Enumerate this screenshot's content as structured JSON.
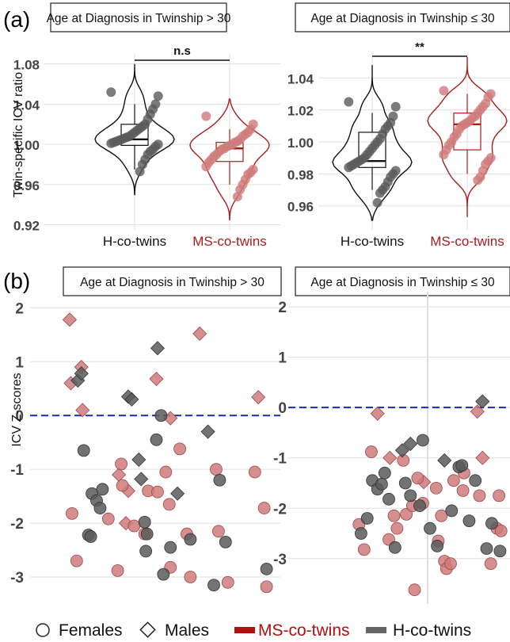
{
  "figure": {
    "panel_a_label": "(a)",
    "panel_b_label": "(b)"
  },
  "legend": {
    "females": "Females",
    "males": "Males",
    "ms": "MS-co-twins",
    "h": "H-co-twins"
  },
  "colors": {
    "ms": "#a81c1c",
    "ms_fill": "#cf7a7a",
    "h": "#404040",
    "h_fill": "#5a5a5a",
    "zero_line": "#1a2aa8",
    "grid": "#e0e0e0"
  },
  "chart_data": [
    {
      "type": "violin",
      "title": "Age at Diagnosis in Twinship > 30",
      "ylabel": "Twin-specific ICV ratio",
      "ylim": [
        0.915,
        1.09
      ],
      "yticks": [
        "0.92",
        "0.96",
        "1.00",
        "1.04",
        "1.08"
      ],
      "ytick_values": [
        0.92,
        0.96,
        1.0,
        1.04,
        1.08
      ],
      "categories": [
        "H-co-twins",
        "MS-co-twins"
      ],
      "significance": "n.s",
      "series": [
        {
          "name": "H-co-twins",
          "median": 1.005,
          "q1": 0.999,
          "q3": 1.02,
          "whisker_low": 0.975,
          "whisker_high": 1.04,
          "min": 0.95,
          "max": 1.08,
          "values": [
            1.052,
            1.048,
            1.04,
            1.035,
            1.03,
            1.025,
            1.02,
            1.018,
            1.016,
            1.014,
            1.012,
            1.01,
            1.008,
            1.007,
            1.006,
            1.005,
            1.004,
            1.003,
            1.002,
            1.001,
            1.0,
            0.998,
            0.995,
            0.993,
            0.99,
            0.985,
            0.98,
            0.973
          ]
        },
        {
          "name": "MS-co-twins",
          "median": 0.996,
          "q1": 0.983,
          "q3": 1.002,
          "whisker_low": 0.96,
          "whisker_high": 1.015,
          "min": 0.925,
          "max": 1.045,
          "values": [
            1.028,
            1.02,
            1.015,
            1.012,
            1.01,
            1.008,
            1.005,
            1.003,
            1.002,
            1.0,
            0.999,
            0.998,
            0.996,
            0.995,
            0.993,
            0.99,
            0.988,
            0.985,
            0.982,
            0.978,
            0.975,
            0.972,
            0.97,
            0.965,
            0.96,
            0.955,
            0.948
          ]
        }
      ]
    },
    {
      "type": "violin",
      "title": "Age at Diagnosis in Twinship ≤ 30",
      "ylim": [
        0.945,
        1.055
      ],
      "yticks": [
        "0.96",
        "0.98",
        "1.00",
        "1.02",
        "1.04"
      ],
      "ytick_values": [
        0.96,
        0.98,
        1.0,
        1.02,
        1.04
      ],
      "categories": [
        "H-co-twins",
        "MS-co-twins"
      ],
      "significance": "**",
      "series": [
        {
          "name": "H-co-twins",
          "median": 0.988,
          "q1": 0.984,
          "q3": 1.006,
          "whisker_low": 0.97,
          "whisker_high": 1.018,
          "min": 0.951,
          "max": 1.048,
          "values": [
            1.025,
            1.022,
            1.016,
            1.012,
            1.01,
            1.008,
            1.005,
            1.002,
            1.0,
            0.998,
            0.996,
            0.994,
            0.992,
            0.99,
            0.989,
            0.988,
            0.987,
            0.986,
            0.985,
            0.984,
            0.982,
            0.98,
            0.978,
            0.975,
            0.972,
            0.97,
            0.968,
            0.962
          ]
        },
        {
          "name": "MS-co-twins",
          "median": 1.011,
          "q1": 0.995,
          "q3": 1.018,
          "whisker_low": 0.98,
          "whisker_high": 1.03,
          "min": 0.953,
          "max": 1.053,
          "values": [
            1.032,
            1.03,
            1.028,
            1.024,
            1.022,
            1.02,
            1.018,
            1.016,
            1.015,
            1.013,
            1.012,
            1.011,
            1.01,
            1.008,
            1.005,
            1.003,
            1.0,
            0.998,
            0.995,
            0.992,
            0.99,
            0.988,
            0.986,
            0.982,
            0.978,
            0.976
          ]
        }
      ]
    },
    {
      "type": "scatter",
      "title": "Age at Diagnosis in Twinship > 30",
      "ylabel": "ICV Z-scores",
      "ylim": [
        -3.5,
        2.3
      ],
      "yticks": [
        "2",
        "1",
        "0",
        "-1",
        "-2",
        "-3"
      ],
      "ytick_values": [
        2,
        1,
        0,
        -1,
        -2,
        -3
      ],
      "xlim": [
        0,
        1
      ],
      "reference_line": 0,
      "points": [
        {
          "g": "ms",
          "s": "d",
          "x": 0.135,
          "y": 1.78
        },
        {
          "g": "ms",
          "s": "d",
          "x": 0.14,
          "y": 0.6
        },
        {
          "g": "ms",
          "s": "d",
          "x": 0.185,
          "y": 0.9
        },
        {
          "g": "ms",
          "s": "d",
          "x": 0.19,
          "y": 0.1
        },
        {
          "g": "ms",
          "s": "d",
          "x": 0.345,
          "y": -1.1
        },
        {
          "g": "ms",
          "s": "d",
          "x": 0.375,
          "y": -2.0
        },
        {
          "g": "ms",
          "s": "d",
          "x": 0.385,
          "y": -1.4
        },
        {
          "g": "ms",
          "s": "d",
          "x": 0.505,
          "y": 0.68
        },
        {
          "g": "ms",
          "s": "d",
          "x": 0.565,
          "y": -0.05
        },
        {
          "g": "ms",
          "s": "d",
          "x": 0.69,
          "y": 1.52
        },
        {
          "g": "ms",
          "s": "d",
          "x": 0.94,
          "y": 0.34
        },
        {
          "g": "ms",
          "s": "c",
          "x": 0.145,
          "y": -1.82
        },
        {
          "g": "ms",
          "s": "c",
          "x": 0.165,
          "y": -2.7
        },
        {
          "g": "ms",
          "s": "c",
          "x": 0.3,
          "y": -1.92
        },
        {
          "g": "ms",
          "s": "c",
          "x": 0.34,
          "y": -2.88
        },
        {
          "g": "ms",
          "s": "c",
          "x": 0.355,
          "y": -0.9
        },
        {
          "g": "ms",
          "s": "c",
          "x": 0.36,
          "y": -1.3
        },
        {
          "g": "ms",
          "s": "c",
          "x": 0.41,
          "y": -2.05
        },
        {
          "g": "ms",
          "s": "c",
          "x": 0.455,
          "y": -2.2
        },
        {
          "g": "ms",
          "s": "c",
          "x": 0.47,
          "y": -1.4
        },
        {
          "g": "ms",
          "s": "c",
          "x": 0.51,
          "y": -1.42
        },
        {
          "g": "ms",
          "s": "c",
          "x": 0.545,
          "y": -1.05
        },
        {
          "g": "ms",
          "s": "c",
          "x": 0.56,
          "y": -1.65
        },
        {
          "g": "ms",
          "s": "c",
          "x": 0.565,
          "y": -2.82
        },
        {
          "g": "ms",
          "s": "c",
          "x": 0.605,
          "y": -0.62
        },
        {
          "g": "ms",
          "s": "c",
          "x": 0.635,
          "y": -2.2
        },
        {
          "g": "ms",
          "s": "c",
          "x": 0.65,
          "y": -3.0
        },
        {
          "g": "ms",
          "s": "c",
          "x": 0.76,
          "y": -1.0
        },
        {
          "g": "ms",
          "s": "c",
          "x": 0.77,
          "y": -2.15
        },
        {
          "g": "ms",
          "s": "c",
          "x": 0.81,
          "y": -3.1
        },
        {
          "g": "ms",
          "s": "c",
          "x": 0.925,
          "y": -1.05
        },
        {
          "g": "ms",
          "s": "c",
          "x": 0.965,
          "y": -1.72
        },
        {
          "g": "ms",
          "s": "c",
          "x": 0.975,
          "y": -3.18
        },
        {
          "g": "h",
          "s": "d",
          "x": 0.17,
          "y": 0.65
        },
        {
          "g": "h",
          "s": "d",
          "x": 0.185,
          "y": 0.78
        },
        {
          "g": "h",
          "s": "d",
          "x": 0.385,
          "y": 0.35
        },
        {
          "g": "h",
          "s": "d",
          "x": 0.4,
          "y": 0.3
        },
        {
          "g": "h",
          "s": "d",
          "x": 0.43,
          "y": -0.82
        },
        {
          "g": "h",
          "s": "d",
          "x": 0.44,
          "y": -1.18
        },
        {
          "g": "h",
          "s": "d",
          "x": 0.51,
          "y": 1.25
        },
        {
          "g": "h",
          "s": "d",
          "x": 0.595,
          "y": -1.45
        },
        {
          "g": "h",
          "s": "d",
          "x": 0.725,
          "y": -0.3
        },
        {
          "g": "h",
          "s": "c",
          "x": 0.195,
          "y": -0.65
        },
        {
          "g": "h",
          "s": "c",
          "x": 0.215,
          "y": -2.22
        },
        {
          "g": "h",
          "s": "c",
          "x": 0.225,
          "y": -2.25
        },
        {
          "g": "h",
          "s": "c",
          "x": 0.23,
          "y": -1.45
        },
        {
          "g": "h",
          "s": "c",
          "x": 0.25,
          "y": -1.58
        },
        {
          "g": "h",
          "s": "c",
          "x": 0.265,
          "y": -1.72
        },
        {
          "g": "h",
          "s": "c",
          "x": 0.275,
          "y": -1.37
        },
        {
          "g": "h",
          "s": "c",
          "x": 0.455,
          "y": -1.98
        },
        {
          "g": "h",
          "s": "c",
          "x": 0.46,
          "y": -2.52
        },
        {
          "g": "h",
          "s": "c",
          "x": 0.465,
          "y": -2.2
        },
        {
          "g": "h",
          "s": "c",
          "x": 0.505,
          "y": -0.45
        },
        {
          "g": "h",
          "s": "c",
          "x": 0.525,
          "y": 0.0
        },
        {
          "g": "h",
          "s": "c",
          "x": 0.535,
          "y": -2.95
        },
        {
          "g": "h",
          "s": "c",
          "x": 0.565,
          "y": -2.45
        },
        {
          "g": "h",
          "s": "c",
          "x": 0.65,
          "y": -2.3
        },
        {
          "g": "h",
          "s": "c",
          "x": 0.75,
          "y": -3.15
        },
        {
          "g": "h",
          "s": "c",
          "x": 0.775,
          "y": -1.2
        },
        {
          "g": "h",
          "s": "c",
          "x": 0.8,
          "y": -2.35
        },
        {
          "g": "h",
          "s": "c",
          "x": 0.975,
          "y": -2.85
        }
      ]
    },
    {
      "type": "scatter",
      "title": "Age at Diagnosis in Twinship ≤ 30",
      "ylim": [
        -3.9,
        2.3
      ],
      "yticks": [
        "2",
        "1",
        "0",
        "-1",
        "-2",
        "-3"
      ],
      "ytick_values": [
        2,
        1,
        0,
        -1,
        -2,
        -3
      ],
      "xlim": [
        0,
        1
      ],
      "reference_line": 0,
      "points": [
        {
          "g": "ms",
          "s": "d",
          "x": 0.395,
          "y": -0.12
        },
        {
          "g": "ms",
          "s": "d",
          "x": 0.455,
          "y": -1.0
        },
        {
          "g": "ms",
          "s": "d",
          "x": 0.62,
          "y": -1.48
        },
        {
          "g": "ms",
          "s": "d",
          "x": 0.88,
          "y": -0.08
        },
        {
          "g": "ms",
          "s": "d",
          "x": 0.905,
          "y": -1.0
        },
        {
          "g": "ms",
          "s": "c",
          "x": 0.33,
          "y": -2.82
        },
        {
          "g": "ms",
          "s": "c",
          "x": 0.365,
          "y": -0.88
        },
        {
          "g": "ms",
          "s": "c",
          "x": 0.45,
          "y": -2.62
        },
        {
          "g": "ms",
          "s": "c",
          "x": 0.475,
          "y": -2.15
        },
        {
          "g": "ms",
          "s": "c",
          "x": 0.49,
          "y": -2.4
        },
        {
          "g": "ms",
          "s": "c",
          "x": 0.52,
          "y": -1.05
        },
        {
          "g": "ms",
          "s": "c",
          "x": 0.535,
          "y": -2.12
        },
        {
          "g": "ms",
          "s": "c",
          "x": 0.565,
          "y": -1.95
        },
        {
          "g": "ms",
          "s": "c",
          "x": 0.575,
          "y": -3.62
        },
        {
          "g": "ms",
          "s": "c",
          "x": 0.59,
          "y": -1.4
        },
        {
          "g": "ms",
          "s": "c",
          "x": 0.615,
          "y": -1.9
        },
        {
          "g": "ms",
          "s": "c",
          "x": 0.68,
          "y": -1.6
        },
        {
          "g": "ms",
          "s": "c",
          "x": 0.69,
          "y": -2.65
        },
        {
          "g": "ms",
          "s": "c",
          "x": 0.705,
          "y": -2.15
        },
        {
          "g": "ms",
          "s": "c",
          "x": 0.72,
          "y": -3.05
        },
        {
          "g": "ms",
          "s": "c",
          "x": 0.73,
          "y": -3.2
        },
        {
          "g": "ms",
          "s": "c",
          "x": 0.75,
          "y": -3.1
        },
        {
          "g": "ms",
          "s": "c",
          "x": 0.765,
          "y": -1.45
        },
        {
          "g": "ms",
          "s": "c",
          "x": 0.815,
          "y": -1.3
        },
        {
          "g": "ms",
          "s": "c",
          "x": 0.89,
          "y": -1.75
        },
        {
          "g": "ms",
          "s": "c",
          "x": 0.945,
          "y": -3.1
        },
        {
          "g": "ms",
          "s": "c",
          "x": 0.975,
          "y": -2.4
        },
        {
          "g": "ms",
          "s": "c",
          "x": 0.985,
          "y": -1.75
        },
        {
          "g": "ms",
          "s": "c",
          "x": 0.995,
          "y": -2.45
        },
        {
          "g": "ms",
          "s": "c",
          "x": 0.305,
          "y": -2.32
        },
        {
          "g": "ms",
          "s": "c",
          "x": 0.81,
          "y": -1.65
        },
        {
          "g": "h",
          "s": "d",
          "x": 0.515,
          "y": -0.85
        },
        {
          "g": "h",
          "s": "d",
          "x": 0.555,
          "y": -0.72
        },
        {
          "g": "h",
          "s": "d",
          "x": 0.72,
          "y": -1.05
        },
        {
          "g": "h",
          "s": "d",
          "x": 0.905,
          "y": 0.12
        },
        {
          "g": "h",
          "s": "c",
          "x": 0.315,
          "y": -2.5
        },
        {
          "g": "h",
          "s": "c",
          "x": 0.345,
          "y": -2.2
        },
        {
          "g": "h",
          "s": "c",
          "x": 0.37,
          "y": -1.45
        },
        {
          "g": "h",
          "s": "c",
          "x": 0.395,
          "y": -1.62
        },
        {
          "g": "h",
          "s": "c",
          "x": 0.415,
          "y": -1.52
        },
        {
          "g": "h",
          "s": "c",
          "x": 0.43,
          "y": -1.3
        },
        {
          "g": "h",
          "s": "c",
          "x": 0.45,
          "y": -1.82
        },
        {
          "g": "h",
          "s": "c",
          "x": 0.48,
          "y": -2.78
        },
        {
          "g": "h",
          "s": "c",
          "x": 0.53,
          "y": -1.5
        },
        {
          "g": "h",
          "s": "c",
          "x": 0.555,
          "y": -1.75
        },
        {
          "g": "h",
          "s": "c",
          "x": 0.6,
          "y": -1.95
        },
        {
          "g": "h",
          "s": "c",
          "x": 0.615,
          "y": -0.65
        },
        {
          "g": "h",
          "s": "c",
          "x": 0.65,
          "y": -2.4
        },
        {
          "g": "h",
          "s": "c",
          "x": 0.685,
          "y": -2.75
        },
        {
          "g": "h",
          "s": "c",
          "x": 0.755,
          "y": -2.05
        },
        {
          "g": "h",
          "s": "c",
          "x": 0.79,
          "y": -1.18
        },
        {
          "g": "h",
          "s": "c",
          "x": 0.805,
          "y": -1.15
        },
        {
          "g": "h",
          "s": "c",
          "x": 0.84,
          "y": -2.25
        },
        {
          "g": "h",
          "s": "c",
          "x": 0.87,
          "y": -1.45
        },
        {
          "g": "h",
          "s": "c",
          "x": 0.925,
          "y": -2.8
        },
        {
          "g": "h",
          "s": "c",
          "x": 0.95,
          "y": -2.3
        },
        {
          "g": "h",
          "s": "c",
          "x": 0.99,
          "y": -2.85
        }
      ]
    }
  ]
}
